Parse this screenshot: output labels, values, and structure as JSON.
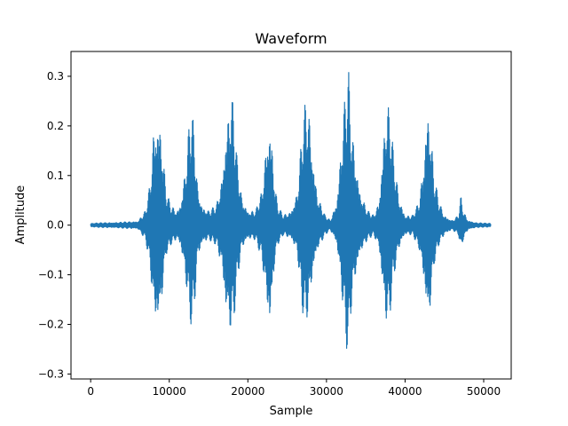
{
  "chart_data": {
    "type": "line",
    "title": "Waveform",
    "xlabel": "Sample",
    "ylabel": "Amplitude",
    "xlim": [
      -2500,
      53500
    ],
    "ylim": [
      -0.31,
      0.35
    ],
    "xticks": [
      0,
      10000,
      20000,
      30000,
      40000,
      50000
    ],
    "xtick_labels": [
      "0",
      "10000",
      "20000",
      "30000",
      "40000",
      "50000"
    ],
    "yticks": [
      -0.3,
      -0.2,
      -0.1,
      0.0,
      0.1,
      0.2,
      0.3
    ],
    "ytick_labels": [
      "−0.3",
      "−0.2",
      "−0.1",
      "0.0",
      "0.1",
      "0.2",
      "0.3"
    ],
    "grid": false,
    "series": [
      {
        "color": "#1f77b4",
        "x": [
          0,
          2000,
          4000,
          6000,
          7000,
          7600,
          8000,
          8300,
          8600,
          8900,
          9200,
          9600,
          10200,
          11000,
          11500,
          12200,
          12600,
          12900,
          13200,
          13600,
          14200,
          15000,
          16000,
          16700,
          17200,
          17600,
          17900,
          18200,
          18600,
          19200,
          20000,
          21000,
          21800,
          22400,
          22800,
          23100,
          23400,
          23800,
          24500,
          25500,
          26300,
          26900,
          27300,
          27600,
          27900,
          28300,
          28900,
          29800,
          30500,
          31300,
          31800,
          32200,
          32500,
          32800,
          33000,
          33300,
          33700,
          34300,
          35200,
          36000,
          36700,
          37200,
          37500,
          37800,
          38100,
          38500,
          39200,
          40000,
          41000,
          41800,
          42400,
          42700,
          43000,
          43300,
          43700,
          44300,
          45000,
          46000,
          46800,
          47100,
          47400,
          48000,
          49000,
          50000,
          50900
        ],
        "y_upper": [
          0.004,
          0.005,
          0.006,
          0.008,
          0.03,
          0.09,
          0.2,
          0.22,
          0.23,
          0.21,
          0.15,
          0.07,
          0.04,
          0.03,
          0.05,
          0.14,
          0.22,
          0.23,
          0.19,
          0.08,
          0.04,
          0.03,
          0.04,
          0.1,
          0.2,
          0.25,
          0.275,
          0.24,
          0.14,
          0.06,
          0.03,
          0.03,
          0.07,
          0.18,
          0.22,
          0.17,
          0.09,
          0.04,
          0.02,
          0.03,
          0.07,
          0.19,
          0.25,
          0.26,
          0.22,
          0.14,
          0.06,
          0.02,
          0.01,
          0.05,
          0.15,
          0.24,
          0.28,
          0.32,
          0.25,
          0.19,
          0.14,
          0.07,
          0.03,
          0.02,
          0.05,
          0.17,
          0.24,
          0.25,
          0.23,
          0.15,
          0.06,
          0.02,
          0.02,
          0.05,
          0.14,
          0.23,
          0.25,
          0.19,
          0.1,
          0.05,
          0.02,
          0.01,
          0.02,
          0.06,
          0.03,
          0.01,
          0.005,
          0.004,
          0.004
        ],
        "y_lower": [
          -0.004,
          -0.005,
          -0.006,
          -0.008,
          -0.03,
          -0.09,
          -0.19,
          -0.21,
          -0.22,
          -0.19,
          -0.13,
          -0.06,
          -0.04,
          -0.03,
          -0.05,
          -0.13,
          -0.19,
          -0.21,
          -0.17,
          -0.07,
          -0.04,
          -0.03,
          -0.04,
          -0.09,
          -0.19,
          -0.22,
          -0.22,
          -0.2,
          -0.12,
          -0.05,
          -0.03,
          -0.03,
          -0.07,
          -0.17,
          -0.23,
          -0.16,
          -0.08,
          -0.04,
          -0.02,
          -0.03,
          -0.06,
          -0.17,
          -0.2,
          -0.19,
          -0.16,
          -0.1,
          -0.05,
          -0.02,
          -0.01,
          -0.04,
          -0.12,
          -0.19,
          -0.24,
          -0.28,
          -0.2,
          -0.15,
          -0.11,
          -0.06,
          -0.03,
          -0.02,
          -0.05,
          -0.15,
          -0.2,
          -0.21,
          -0.18,
          -0.11,
          -0.05,
          -0.02,
          -0.02,
          -0.05,
          -0.12,
          -0.19,
          -0.21,
          -0.16,
          -0.08,
          -0.04,
          -0.02,
          -0.01,
          -0.02,
          -0.05,
          -0.03,
          -0.01,
          -0.005,
          -0.004,
          -0.004
        ]
      }
    ]
  }
}
